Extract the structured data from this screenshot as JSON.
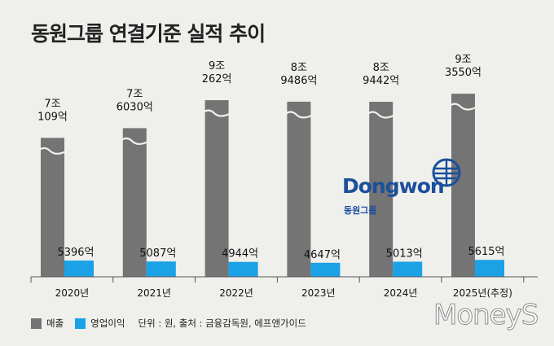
{
  "chart_data": {
    "type": "bar",
    "title": "동원그룹 연결기준 실적 추이",
    "categories": [
      "2020년",
      "2021년",
      "2022년",
      "2023년",
      "2024년",
      "2025년(추정)"
    ],
    "series": [
      {
        "name": "매출",
        "color": "#747474",
        "values": [
          71090,
          76030,
          90262,
          89486,
          89442,
          93550
        ],
        "labels": [
          [
            "7조",
            "109억"
          ],
          [
            "7조",
            "6030억"
          ],
          [
            "9조",
            "262억"
          ],
          [
            "8조",
            "9486억"
          ],
          [
            "8조",
            "9442억"
          ],
          [
            "9조",
            "3550억"
          ]
        ],
        "axis_break": true
      },
      {
        "name": "영업이익",
        "color": "#1aa1e6",
        "values": [
          5396,
          5087,
          4944,
          4647,
          5013,
          5615
        ],
        "labels": [
          "5396억",
          "5087억",
          "4944억",
          "4647억",
          "5013억",
          "5615억"
        ]
      }
    ],
    "unit": "억원",
    "legend_position": "bottom-left"
  },
  "legend": {
    "items": [
      {
        "label": "매출",
        "color": "#747474"
      },
      {
        "label": "영업이익",
        "color": "#1aa1e6"
      }
    ],
    "note": "단위 : 원, 출처 : 금융감독원, 에프앤가이드"
  },
  "brand": {
    "wordmark": "Dongwon",
    "subtitle": "동원그룹",
    "icon": "globe-logo-icon",
    "color": "#1c4f9c"
  },
  "watermark": {
    "text": "MoneyS"
  }
}
